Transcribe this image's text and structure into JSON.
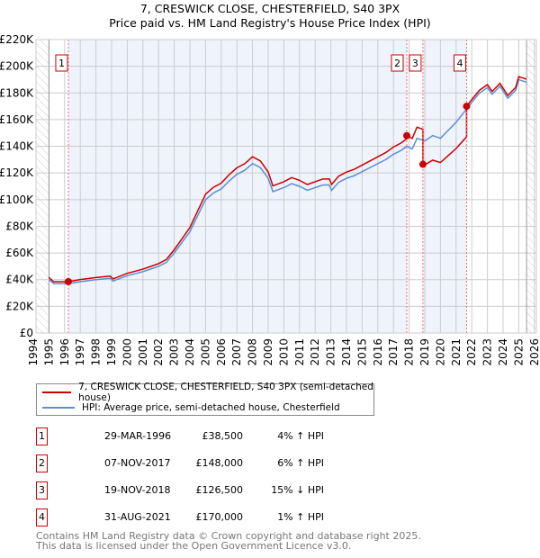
{
  "chart_data": {
    "type": "line",
    "title": "7, CRESWICK CLOSE, CHESTERFIELD, S40 3PX",
    "subtitle": "Price paid vs. HM Land Registry's House Price Index (HPI)",
    "xlim": [
      1994,
      2026
    ],
    "ylim": [
      0,
      220000
    ],
    "yticks": [
      "£0",
      "£20K",
      "£40K",
      "£60K",
      "£80K",
      "£100K",
      "£120K",
      "£140K",
      "£160K",
      "£180K",
      "£200K",
      "£220K"
    ],
    "xticks": [
      "1994",
      "1995",
      "1996",
      "1997",
      "1998",
      "1999",
      "2000",
      "2001",
      "2002",
      "2003",
      "2004",
      "2005",
      "2006",
      "2007",
      "2008",
      "2009",
      "2010",
      "2011",
      "2012",
      "2013",
      "2014",
      "2015",
      "2016",
      "2017",
      "2018",
      "2019",
      "2020",
      "2021",
      "2022",
      "2023",
      "2024",
      "2025",
      "2026"
    ],
    "grid": true,
    "legend": [
      "7, CRESWICK CLOSE, CHESTERFIELD, S40 3PX (semi-detached house)",
      "HPI: Average price, semi-detached house, Chesterfield"
    ],
    "colors": {
      "property": "#cc0000",
      "hpi": "#5b8fd4",
      "shade": "#eef3fc"
    },
    "hpi_series": [
      [
        1995.0,
        40
      ],
      [
        1995.3,
        37
      ],
      [
        1996.0,
        37
      ],
      [
        1996.24,
        37
      ],
      [
        1997,
        38.5
      ],
      [
        1998,
        40
      ],
      [
        1998.9,
        41
      ],
      [
        1999.1,
        39
      ],
      [
        2000,
        43
      ],
      [
        2001,
        46
      ],
      [
        2001.5,
        48
      ],
      [
        2002,
        50
      ],
      [
        2002.5,
        53
      ],
      [
        2003,
        60
      ],
      [
        2003.5,
        68
      ],
      [
        2004,
        76
      ],
      [
        2004.5,
        88
      ],
      [
        2005,
        100
      ],
      [
        2005.5,
        105
      ],
      [
        2006,
        108
      ],
      [
        2006.5,
        114
      ],
      [
        2007,
        119
      ],
      [
        2007.5,
        122
      ],
      [
        2008,
        127
      ],
      [
        2008.5,
        124
      ],
      [
        2009,
        116
      ],
      [
        2009.3,
        106
      ],
      [
        2010,
        109
      ],
      [
        2010.5,
        112
      ],
      [
        2011,
        110
      ],
      [
        2011.5,
        107
      ],
      [
        2012,
        109
      ],
      [
        2012.5,
        111
      ],
      [
        2012.9,
        111
      ],
      [
        2013.05,
        107
      ],
      [
        2013.5,
        113
      ],
      [
        2014,
        116
      ],
      [
        2014.5,
        118
      ],
      [
        2015,
        121
      ],
      [
        2015.5,
        124
      ],
      [
        2016,
        127
      ],
      [
        2016.5,
        130
      ],
      [
        2017,
        134
      ],
      [
        2017.5,
        137
      ],
      [
        2017.85,
        140
      ],
      [
        2018.2,
        138
      ],
      [
        2018.5,
        146
      ],
      [
        2019,
        144
      ],
      [
        2019.5,
        148
      ],
      [
        2020,
        146
      ],
      [
        2020.5,
        152
      ],
      [
        2021,
        158
      ],
      [
        2021.67,
        168
      ],
      [
        2022,
        173
      ],
      [
        2022.5,
        180
      ],
      [
        2023,
        184
      ],
      [
        2023.3,
        179
      ],
      [
        2023.8,
        185
      ],
      [
        2024.3,
        176
      ],
      [
        2024.8,
        182
      ],
      [
        2025,
        190
      ],
      [
        2025.5,
        188
      ]
    ],
    "sales": [
      {
        "num": "1",
        "t": 1996.24,
        "value": 38500,
        "date": "29-MAR-1996",
        "price": "£38,500",
        "hpi": "4% ↑ HPI"
      },
      {
        "num": "2",
        "t": 2017.85,
        "value": 148000,
        "date": "07-NOV-2017",
        "price": "£148,000",
        "hpi": "6% ↑ HPI"
      },
      {
        "num": "3",
        "t": 2018.88,
        "value": 126500,
        "date": "19-NOV-2018",
        "price": "£126,500",
        "hpi": "15% ↓ HPI"
      },
      {
        "num": "4",
        "t": 2021.67,
        "value": 170000,
        "date": "31-AUG-2021",
        "price": "£170,000",
        "hpi": "1% ↑ HPI"
      }
    ]
  },
  "footer": {
    "line1": "Contains HM Land Registry data © Crown copyright and database right 2025.",
    "line2": "This data is licensed under the Open Government Licence v3.0."
  }
}
